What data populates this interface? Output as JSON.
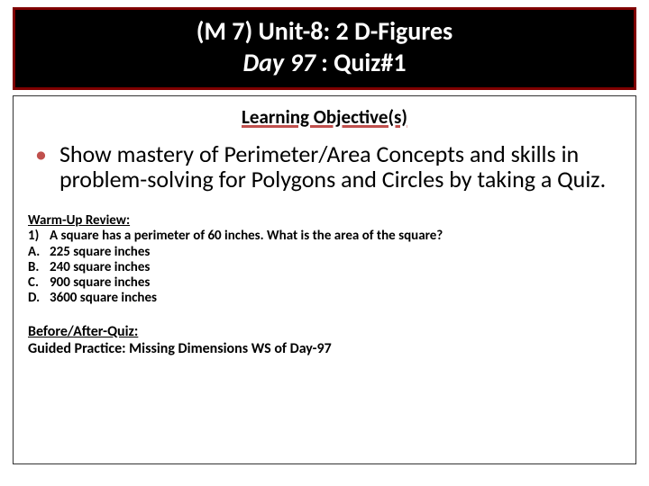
{
  "colors": {
    "header_bg": "#000000",
    "header_border": "#7f0000",
    "header_text": "#ffffff",
    "accent": "#c0504d",
    "body_text": "#000000",
    "content_border": "#333333",
    "page_bg": "#ffffff"
  },
  "fonts": {
    "family": "Calibri, Arial, sans-serif",
    "header_size_pt": 21,
    "subheader_size_pt": 16,
    "bullet_size_pt": 20,
    "small_size_pt": 11
  },
  "header": {
    "line1": "(M 7)  Unit-8: 2 D-Figures",
    "line2_italic": "Day 97",
    "line2_rest": " : Quiz#1"
  },
  "subheader": "Learning Objective(s)",
  "bullet": "Show mastery of Perimeter/Area Concepts and skills in problem-solving for Polygons and Circles by taking a Quiz.",
  "warmup": {
    "title": "Warm-Up Review:",
    "q_num": "1)",
    "q_text": "A square has a perimeter of 60 inches. What is the area of the square?",
    "a_num": "A.",
    "a_text": "225 square inches",
    "b_num": "B.",
    "b_text": "240 square inches",
    "c_num": "C.",
    "c_text": "900 square inches",
    "d_num": "D.",
    "d_text": "3600 square inches"
  },
  "after": {
    "title": "Before/After-Quiz:",
    "text": " Guided Practice:   Missing Dimensions WS  of Day-97"
  }
}
